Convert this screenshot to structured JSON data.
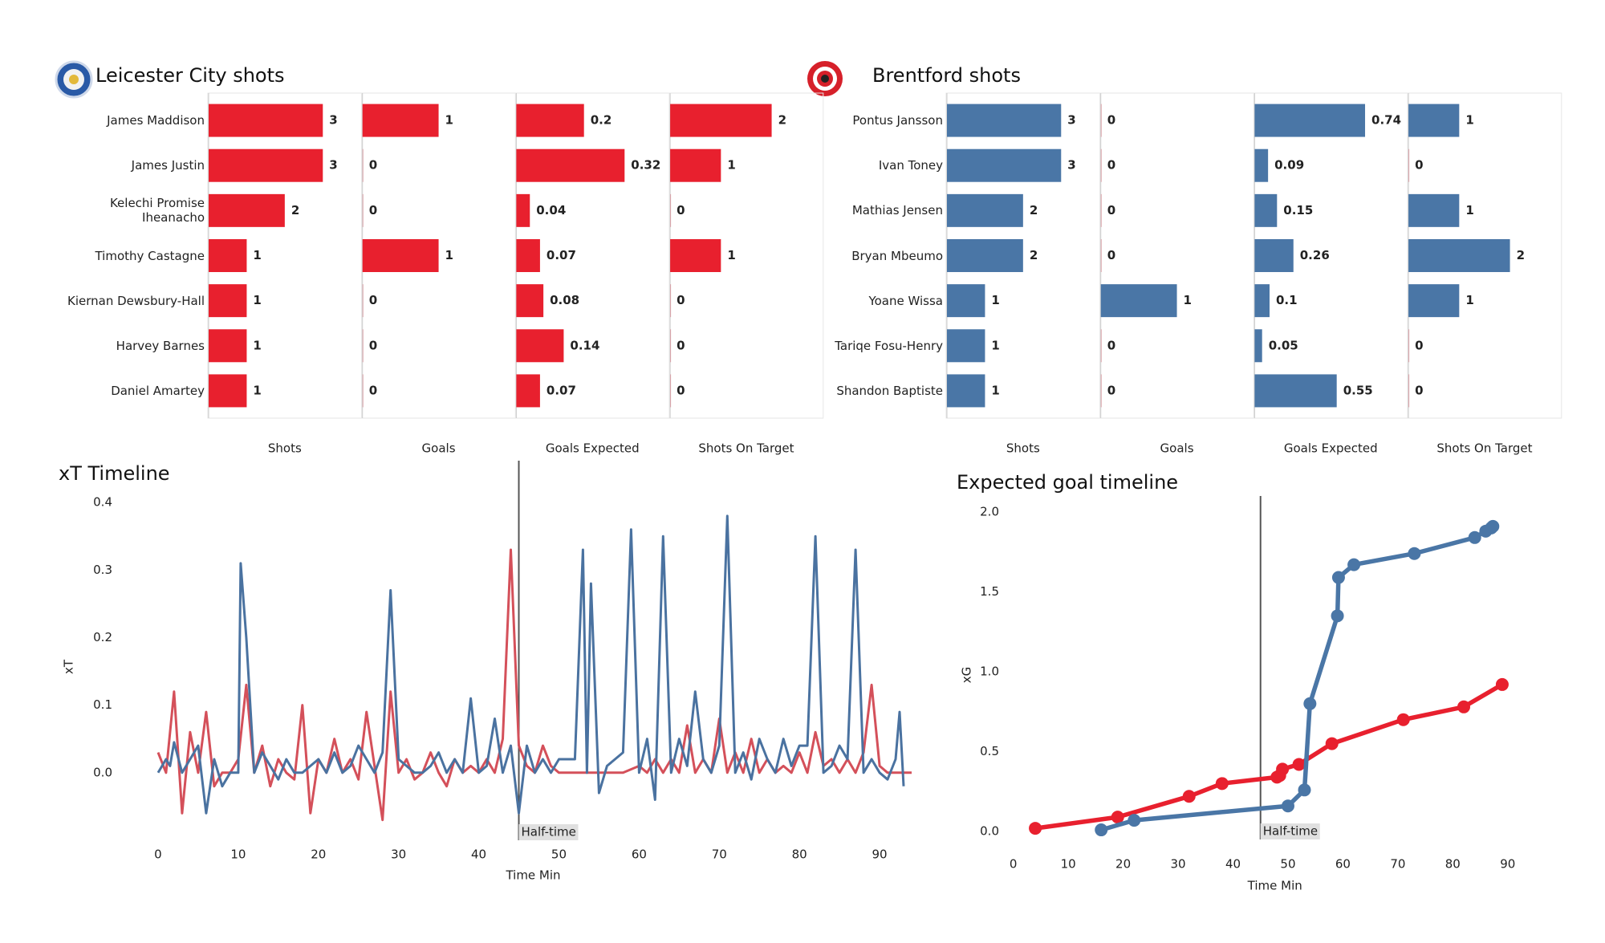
{
  "chart_data": [
    {
      "type": "bar",
      "title": "Leicester City shots",
      "categories": [
        "James Maddison",
        "James Justin",
        "Kelechi Promise Iheanacho",
        "Timothy Castagne",
        "Kiernan Dewsbury-Hall",
        "Harvey Barnes",
        "Daniel Amartey"
      ],
      "color": "#e8202e",
      "panels": [
        {
          "name": "Shots",
          "values": [
            3,
            3,
            2,
            1,
            1,
            1,
            1
          ],
          "xlim": [
            0,
            4
          ]
        },
        {
          "name": "Goals",
          "values": [
            1,
            0,
            0,
            1,
            0,
            0,
            0
          ],
          "xlim": [
            0,
            2
          ]
        },
        {
          "name": "Goals Expected",
          "values": [
            0.2,
            0.32,
            0.04,
            0.07,
            0.08,
            0.14,
            0.07
          ],
          "xlim": [
            0,
            0.45
          ]
        },
        {
          "name": "Shots On Target",
          "values": [
            2,
            1,
            0,
            1,
            0,
            0,
            0
          ],
          "xlim": [
            0,
            3
          ]
        }
      ]
    },
    {
      "type": "bar",
      "title": "Brentford shots",
      "categories": [
        "Pontus Jansson",
        "Ivan Toney",
        "Mathias Jensen",
        "Bryan Mbeumo",
        "Yoane Wissa",
        "Tariqe Fosu-Henry",
        "Shandon Baptiste"
      ],
      "color": "#4a76a6",
      "panels": [
        {
          "name": "Shots",
          "values": [
            3,
            3,
            2,
            2,
            1,
            1,
            1
          ],
          "xlim": [
            0,
            4
          ]
        },
        {
          "name": "Goals",
          "values": [
            0,
            0,
            0,
            0,
            1,
            0,
            0
          ],
          "xlim": [
            0,
            2
          ]
        },
        {
          "name": "Goals Expected",
          "values": [
            0.74,
            0.09,
            0.15,
            0.26,
            0.1,
            0.05,
            0.55
          ],
          "xlim": [
            0,
            1.02
          ]
        },
        {
          "name": "Shots On Target",
          "values": [
            1,
            0,
            1,
            2,
            1,
            0,
            0
          ],
          "xlim": [
            0,
            3
          ]
        }
      ]
    },
    {
      "type": "line",
      "title": "xT Timeline",
      "xlabel": "Time Min",
      "ylabel": "xT",
      "xlim": [
        -4,
        96
      ],
      "ylim": [
        -0.1,
        0.45
      ],
      "xticks": [
        0,
        10,
        20,
        30,
        40,
        50,
        60,
        70,
        80,
        90
      ],
      "yticks": [
        {
          "value": 0,
          "label": "0.0"
        },
        0.1,
        0.2,
        0.3,
        0.4
      ],
      "vline": {
        "x": 45,
        "label": "Half-time"
      },
      "markers": false,
      "series": [
        {
          "color": "#d4505a",
          "x": [
            0,
            1,
            2,
            3,
            4,
            5,
            6,
            7,
            8,
            9,
            10,
            11,
            12,
            13,
            14,
            15,
            16,
            17,
            18,
            19,
            20,
            21,
            22,
            23,
            24,
            25,
            26,
            27,
            28,
            29,
            30,
            31,
            32,
            33,
            34,
            35,
            36,
            37,
            38,
            39,
            40,
            41,
            42,
            43,
            44,
            45,
            46,
            47,
            48,
            49,
            50,
            52,
            54,
            56,
            58,
            60,
            61,
            62,
            63,
            64,
            65,
            66,
            67,
            68,
            69,
            70,
            71,
            72,
            73,
            74,
            75,
            76,
            77,
            78,
            79,
            80,
            81,
            82,
            83,
            84,
            85,
            86,
            87,
            88,
            89,
            90,
            91,
            92,
            94
          ],
          "values": [
            0.03,
            0,
            0.12,
            -0.06,
            0.06,
            0,
            0.09,
            -0.02,
            0,
            0,
            0.02,
            0.13,
            0,
            0.04,
            -0.02,
            0.02,
            0,
            -0.01,
            0.1,
            -0.06,
            0.02,
            0,
            0.05,
            0,
            0.02,
            -0.01,
            0.09,
            0.01,
            -0.07,
            0.12,
            0,
            0.02,
            -0.01,
            0,
            0.03,
            0,
            -0.02,
            0.02,
            0,
            0.01,
            0,
            0.02,
            0,
            0.05,
            0.33,
            0.04,
            0.01,
            0,
            0.04,
            0.01,
            0,
            0,
            0,
            0,
            0,
            0.01,
            0,
            0.02,
            0,
            0.02,
            0,
            0.07,
            0,
            0.02,
            0,
            0.08,
            0,
            0.03,
            0,
            0.05,
            0,
            0.02,
            0,
            0.01,
            0,
            0.03,
            0,
            0.06,
            0.01,
            0.02,
            0,
            0.02,
            0,
            0.03,
            0.13,
            0.01,
            0,
            0,
            0
          ]
        },
        {
          "color": "#4a72a0",
          "x": [
            0,
            1,
            1.5,
            2,
            3,
            4,
            5,
            6,
            7,
            8,
            9,
            10,
            10.3,
            11,
            12,
            13,
            14,
            15,
            16,
            17,
            18,
            19,
            20,
            21,
            22,
            23,
            24,
            25,
            26,
            27,
            28,
            29,
            30,
            31,
            32,
            33,
            34,
            35,
            36,
            37,
            38,
            39,
            40,
            41,
            42,
            43,
            44,
            45,
            46,
            47,
            48,
            49,
            50,
            52,
            53,
            53.5,
            54,
            55,
            56,
            58,
            59,
            60,
            61,
            62,
            63,
            64,
            65,
            66,
            67,
            68,
            69,
            70,
            71,
            72,
            73,
            74,
            75,
            76,
            77,
            78,
            79,
            80,
            81,
            82,
            83,
            84,
            85,
            86,
            87,
            88,
            89,
            90,
            91,
            92,
            92.5,
            93
          ],
          "values": [
            0,
            0.02,
            0.01,
            0.045,
            0,
            0.02,
            0.04,
            -0.06,
            0.02,
            -0.02,
            0,
            0,
            0.31,
            0.2,
            0,
            0.03,
            0.01,
            -0.01,
            0.02,
            0,
            0,
            0.01,
            0.02,
            0,
            0.03,
            0,
            0.01,
            0.04,
            0.02,
            0,
            0.03,
            0.27,
            0.02,
            0.01,
            0,
            0,
            0.01,
            0.03,
            0,
            0.02,
            0,
            0.11,
            0,
            0.01,
            0.08,
            0,
            0.04,
            -0.06,
            0.04,
            0,
            0.02,
            0,
            0.02,
            0.02,
            0.33,
            0,
            0.28,
            -0.03,
            0.01,
            0.03,
            0.36,
            0,
            0.05,
            -0.04,
            0.35,
            0,
            0.05,
            0.01,
            0.12,
            0.02,
            0,
            0.04,
            0.38,
            0,
            0.03,
            -0.01,
            0.05,
            0.02,
            0,
            0.05,
            0.01,
            0.04,
            0.04,
            0.35,
            0,
            0.01,
            0.04,
            0.02,
            0.33,
            0,
            0.02,
            0,
            -0.01,
            0.02,
            0.09,
            -0.02
          ]
        }
      ]
    },
    {
      "type": "line",
      "title": "Expected goal timeline",
      "xlabel": "Time Min",
      "ylabel": "xG",
      "xlim": [
        -2,
        95
      ],
      "ylim": [
        -0.05,
        2.05
      ],
      "xticks": [
        0,
        10,
        20,
        30,
        40,
        50,
        60,
        70,
        80,
        90
      ],
      "yticks": [
        {
          "value": 0,
          "label": "0.0"
        },
        0.5,
        {
          "value": 1,
          "label": "1.0"
        },
        1.5,
        {
          "value": 2,
          "label": "2.0"
        }
      ],
      "vline": {
        "x": 45,
        "label": "Half-time"
      },
      "markers": true,
      "series": [
        {
          "color": "#e8202e",
          "x": [
            4,
            19,
            32,
            38,
            48,
            48.5,
            49,
            52,
            58,
            71,
            82,
            89
          ],
          "values": [
            0.02,
            0.09,
            0.22,
            0.3,
            0.34,
            0.35,
            0.39,
            0.42,
            0.55,
            0.7,
            0.78,
            0.92
          ]
        },
        {
          "color": "#4a76a6",
          "x": [
            16,
            22,
            50,
            53,
            54,
            59,
            59.2,
            62,
            73,
            84,
            86,
            87,
            87.3
          ],
          "values": [
            0.01,
            0.07,
            0.16,
            0.26,
            0.8,
            1.35,
            1.59,
            1.67,
            1.74,
            1.84,
            1.88,
            1.9,
            1.91
          ]
        }
      ]
    }
  ]
}
